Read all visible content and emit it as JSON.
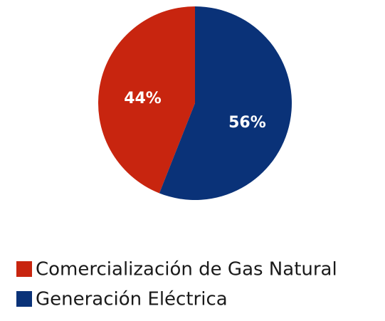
{
  "chart_data": {
    "type": "pie",
    "categories": [
      "Comercialización de Gas Natural",
      "Generación Eléctrica"
    ],
    "values": [
      44,
      56
    ],
    "value_labels": [
      "44%",
      "56%"
    ],
    "colors": [
      "#c8250f",
      "#0a3278"
    ],
    "legend": "bottom-left"
  }
}
